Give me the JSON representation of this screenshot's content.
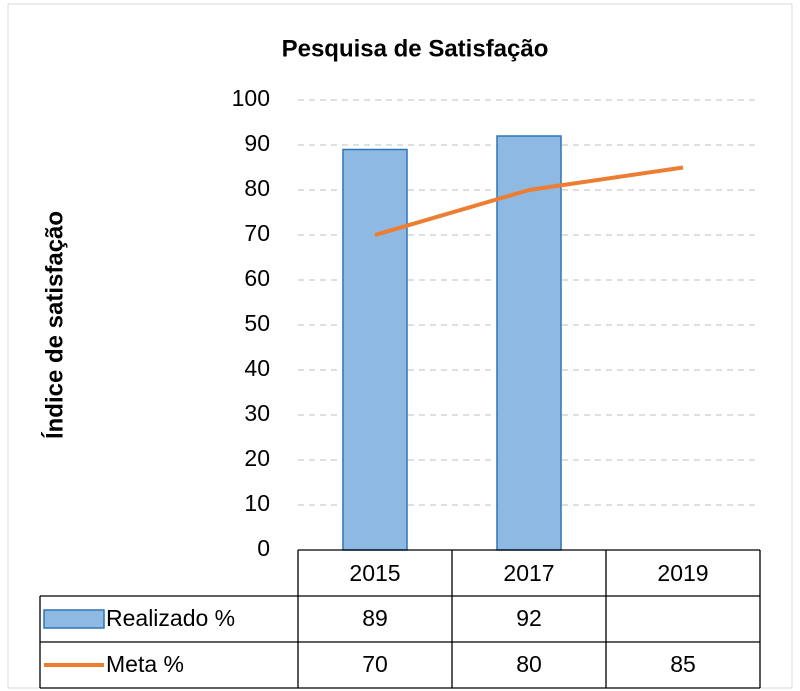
{
  "chart_data": {
    "type": "bar",
    "title": "Pesquisa de Satisfação",
    "ylabel": "Índice de satisfação",
    "categories": [
      "2015",
      "2017",
      "2019"
    ],
    "series": [
      {
        "name": "Realizado %",
        "type": "bar",
        "color": "#8DB9E2",
        "values": [
          89,
          92,
          null
        ]
      },
      {
        "name": "Meta %",
        "type": "line",
        "color": "#ED7D31",
        "values": [
          70,
          80,
          85
        ]
      }
    ],
    "ylim": [
      0,
      100
    ],
    "yticks": [
      0,
      10,
      20,
      30,
      40,
      50,
      60,
      70,
      80,
      90,
      100
    ],
    "grid": true,
    "data_table": true
  }
}
